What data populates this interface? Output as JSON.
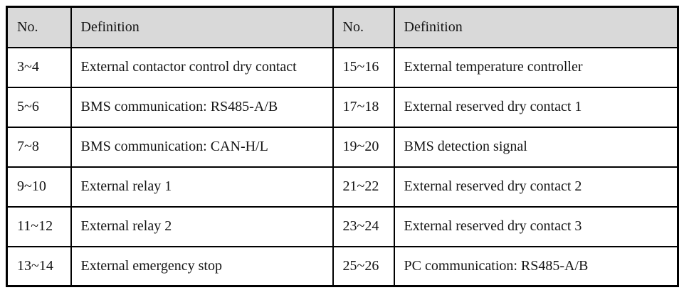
{
  "table": {
    "columns": {
      "no_label": "No.",
      "definition_label": "Definition"
    },
    "colors": {
      "header_bg": "#d9d9d9",
      "border": "#000000",
      "text": "#151515",
      "background": "#ffffff"
    },
    "left_rows": [
      {
        "no": "3~4",
        "definition": "External contactor control dry contact"
      },
      {
        "no": "5~6",
        "definition": "BMS communication: RS485-A/B"
      },
      {
        "no": "7~8",
        "definition": "BMS communication: CAN-H/L"
      },
      {
        "no": "9~10",
        "definition": "External relay 1"
      },
      {
        "no": "11~12",
        "definition": "External relay 2"
      },
      {
        "no": "13~14",
        "definition": "External emergency stop"
      }
    ],
    "right_rows": [
      {
        "no": "15~16",
        "definition": "External temperature controller"
      },
      {
        "no": "17~18",
        "definition": "External reserved dry contact 1"
      },
      {
        "no": "19~20",
        "definition": "BMS detection signal"
      },
      {
        "no": "21~22",
        "definition": "External reserved dry contact 2"
      },
      {
        "no": "23~24",
        "definition": "External reserved dry contact 3"
      },
      {
        "no": "25~26",
        "definition": "PC communication: RS485-A/B"
      }
    ]
  }
}
